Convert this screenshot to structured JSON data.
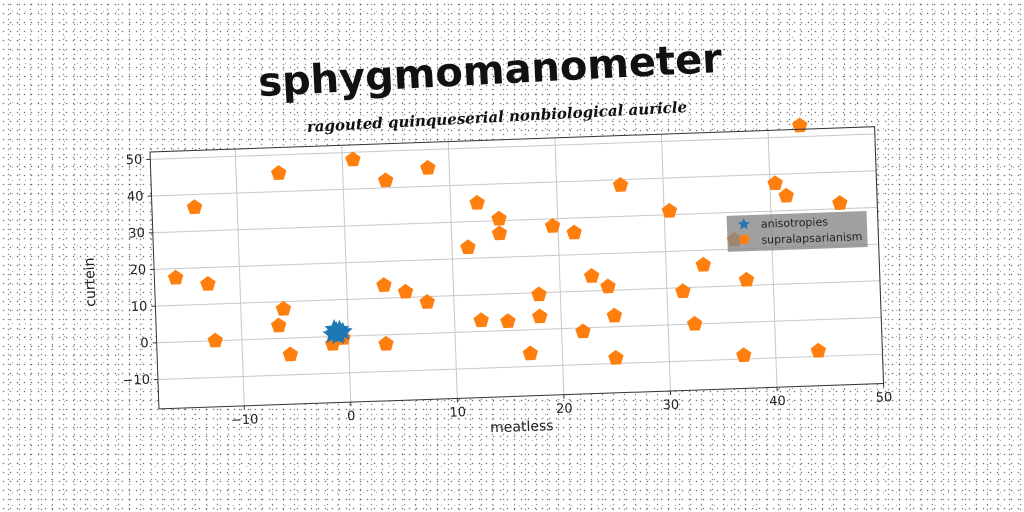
{
  "chart_data": {
    "type": "scatter",
    "title": "sphygmomanometer",
    "subtitle": "ragouted quinqueserial nonbiological auricle",
    "xlabel": "meatless",
    "ylabel": "curtein",
    "xlim": [
      -18,
      50
    ],
    "ylim": [
      -18,
      52
    ],
    "xticks": [
      -10,
      0,
      10,
      20,
      30,
      40,
      50
    ],
    "yticks": [
      -10,
      0,
      10,
      20,
      30,
      40,
      50
    ],
    "xtick_labels": [
      "−10",
      "0",
      "10",
      "20",
      "30",
      "40",
      "50"
    ],
    "ytick_labels": [
      "−10",
      "0",
      "10",
      "20",
      "30",
      "40",
      "50"
    ],
    "grid": true,
    "legend_position": "right",
    "series": [
      {
        "name": "anisotropies",
        "color": "#1f77b4",
        "marker": "star",
        "x": [
          -1.2,
          -0.8,
          -1.5,
          -1.0,
          -0.5,
          -1.3,
          -0.9,
          -1.1
        ],
        "y": [
          1.0,
          1.8,
          0.6,
          0.2,
          1.2,
          2.0,
          0.8,
          1.4
        ]
      },
      {
        "name": "supralapsarianism",
        "color": "#ff7f0e",
        "marker": "pentagon",
        "x": [
          -16,
          -14,
          -13,
          -12.5,
          -6,
          -6,
          -6.5,
          -5.5,
          -1.5,
          -0.5,
          1,
          4,
          3.5,
          3.5,
          5.5,
          7.5,
          8,
          11.5,
          12.5,
          12.5,
          14.5,
          14.5,
          15,
          17,
          18,
          18,
          19.5,
          21.5,
          22,
          23,
          24.5,
          25,
          25,
          26,
          30.5,
          31.5,
          32.5,
          33.5,
          36.5,
          37,
          37.5,
          40.5,
          41.5,
          43,
          44,
          46.5
        ],
        "y": [
          17.5,
          36.5,
          15.5,
          0,
          45,
          8,
          3.5,
          -4.5,
          -2,
          -0.5,
          48,
          42,
          13.5,
          -2.5,
          11.5,
          8.5,
          45,
          23,
          35,
          3,
          30.5,
          26.5,
          2.5,
          -6.5,
          9.5,
          3.5,
          28,
          26,
          -1,
          14,
          11,
          3,
          -8.5,
          38.5,
          31,
          9,
          0,
          16,
          22.5,
          -9,
          11.5,
          37.5,
          34,
          53,
          -8.5,
          31.5
        ]
      }
    ]
  }
}
